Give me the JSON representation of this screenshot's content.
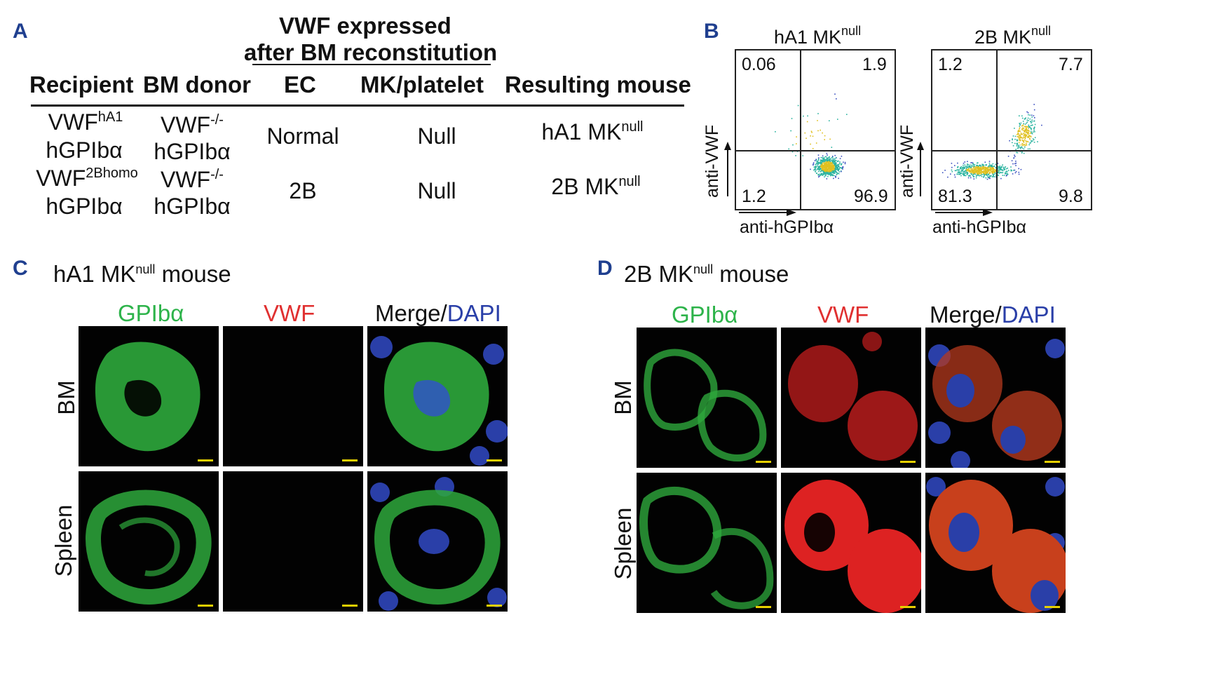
{
  "panels": {
    "a": "A",
    "b": "B",
    "c": "C",
    "d": "D"
  },
  "table": {
    "group_header_line1": "VWF expressed",
    "group_header_line2": "after BM reconstitution",
    "headers": {
      "recipient": "Recipient",
      "bm_donor": "BM donor",
      "ec": "EC",
      "mk_platelet": "MK/platelet",
      "resulting_mouse": "Resulting mouse"
    },
    "rows": [
      {
        "recipient_base": "VWF",
        "recipient_sup": "hA1",
        "recipient_line2": "hGPIbα",
        "donor_base": "VWF",
        "donor_sup": "-/-",
        "donor_line2": "hGPIbα",
        "ec": "Normal",
        "mk": "Null",
        "mouse_base": "hA1 MK",
        "mouse_sup": "null"
      },
      {
        "recipient_base": "VWF",
        "recipient_sup": "2Bhomo",
        "recipient_line2": "hGPIbα",
        "donor_base": "VWF",
        "donor_sup": "-/-",
        "donor_line2": "hGPIbα",
        "ec": "2B",
        "mk": "Null",
        "mouse_base": "2B MK",
        "mouse_sup": "null"
      }
    ]
  },
  "flow": [
    {
      "title_base": "hA1 MK",
      "title_sup": "null",
      "quadrants": {
        "ul": "0.06",
        "ur": "1.9",
        "ll": "1.2",
        "lr": "96.9"
      },
      "xlabel": "anti-hGPIbα",
      "ylabel": "anti-VWF"
    },
    {
      "title_base": "2B MK",
      "title_sup": "null",
      "quadrants": {
        "ul": "1.2",
        "ur": "7.7",
        "ll": "81.3",
        "lr": "9.8"
      },
      "xlabel": "anti-hGPIbα",
      "ylabel": "anti-VWF"
    }
  ],
  "section_c": {
    "title_base": "hA1 MK",
    "title_sup": "null",
    "title_end": " mouse"
  },
  "section_d": {
    "title_base": "2B MK",
    "title_sup": "null",
    "title_end": " mouse"
  },
  "channels": {
    "gp": "GPIbα",
    "vwf": "VWF",
    "merge": "Merge/",
    "dapi": "DAPI"
  },
  "rows": {
    "bm": "BM",
    "spleen": "Spleen"
  },
  "colors": {
    "green": "#2db34a",
    "red": "#e03030",
    "blue": "#2a3fa8",
    "panel": "#1f3f8f"
  }
}
